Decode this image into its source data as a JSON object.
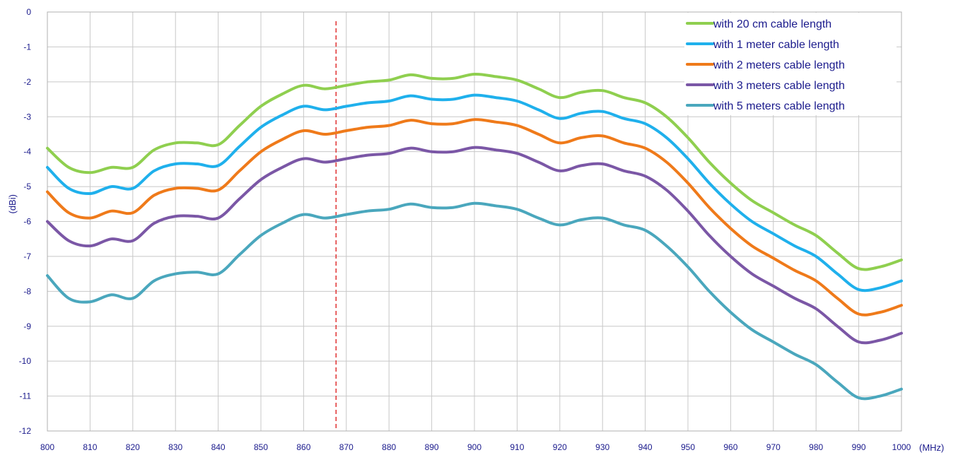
{
  "chart_data": {
    "type": "line",
    "x_unit_label": "(MHz)",
    "y_unit_label": "(dBi)",
    "xlim": [
      800,
      1000
    ],
    "ylim": [
      -12,
      0
    ],
    "x_ticks": [
      "800",
      "810",
      "820",
      "830",
      "840",
      "850",
      "860",
      "870",
      "880",
      "890",
      "900",
      "910",
      "920",
      "930",
      "940",
      "950",
      "960",
      "970",
      "980",
      "990",
      "1000"
    ],
    "y_ticks": [
      "0",
      "-1",
      "-2",
      "-3",
      "-4",
      "-5",
      "-6",
      "-7",
      "-8",
      "-9",
      "-10",
      "-11",
      "-12"
    ],
    "grid": true,
    "legend_position": "top-right",
    "marker_line": {
      "x": 867.6,
      "color": "#e03030",
      "style": "dashed"
    },
    "series": [
      {
        "name": "with 20 cm cable length",
        "color": "#8fcf4f",
        "x": [
          800,
          805,
          810,
          815,
          820,
          825,
          830,
          835,
          840,
          845,
          850,
          855,
          860,
          865,
          870,
          875,
          880,
          885,
          890,
          895,
          900,
          905,
          910,
          915,
          920,
          925,
          930,
          935,
          940,
          945,
          950,
          955,
          960,
          965,
          970,
          975,
          980,
          985,
          990,
          995,
          1000
        ],
        "y": [
          -3.9,
          -4.45,
          -4.6,
          -4.45,
          -4.45,
          -3.95,
          -3.75,
          -3.75,
          -3.8,
          -3.25,
          -2.7,
          -2.35,
          -2.1,
          -2.2,
          -2.1,
          -2.0,
          -1.95,
          -1.8,
          -1.9,
          -1.9,
          -1.78,
          -1.85,
          -1.95,
          -2.2,
          -2.45,
          -2.3,
          -2.25,
          -2.45,
          -2.6,
          -3.0,
          -3.6,
          -4.3,
          -4.9,
          -5.4,
          -5.75,
          -6.1,
          -6.4,
          -6.9,
          -7.35,
          -7.3,
          -7.1
        ]
      },
      {
        "name": "with 1 meter cable length",
        "color": "#1fb0ec",
        "x": [
          800,
          805,
          810,
          815,
          820,
          825,
          830,
          835,
          840,
          845,
          850,
          855,
          860,
          865,
          870,
          875,
          880,
          885,
          890,
          895,
          900,
          905,
          910,
          915,
          920,
          925,
          930,
          935,
          940,
          945,
          950,
          955,
          960,
          965,
          970,
          975,
          980,
          985,
          990,
          995,
          1000
        ],
        "y": [
          -4.45,
          -5.05,
          -5.2,
          -5.0,
          -5.05,
          -4.55,
          -4.35,
          -4.35,
          -4.4,
          -3.85,
          -3.3,
          -2.95,
          -2.7,
          -2.8,
          -2.7,
          -2.6,
          -2.55,
          -2.4,
          -2.5,
          -2.5,
          -2.38,
          -2.45,
          -2.55,
          -2.8,
          -3.05,
          -2.9,
          -2.85,
          -3.05,
          -3.2,
          -3.6,
          -4.2,
          -4.9,
          -5.5,
          -6.0,
          -6.35,
          -6.7,
          -7.0,
          -7.5,
          -7.95,
          -7.9,
          -7.7
        ]
      },
      {
        "name": "with 2 meters cable length",
        "color": "#ef7a1a",
        "x": [
          800,
          805,
          810,
          815,
          820,
          825,
          830,
          835,
          840,
          845,
          850,
          855,
          860,
          865,
          870,
          875,
          880,
          885,
          890,
          895,
          900,
          905,
          910,
          915,
          920,
          925,
          930,
          935,
          940,
          945,
          950,
          955,
          960,
          965,
          970,
          975,
          980,
          985,
          990,
          995,
          1000
        ],
        "y": [
          -5.15,
          -5.75,
          -5.9,
          -5.7,
          -5.75,
          -5.25,
          -5.05,
          -5.05,
          -5.1,
          -4.55,
          -4.0,
          -3.65,
          -3.4,
          -3.5,
          -3.4,
          -3.3,
          -3.25,
          -3.1,
          -3.2,
          -3.2,
          -3.08,
          -3.15,
          -3.25,
          -3.5,
          -3.75,
          -3.6,
          -3.55,
          -3.75,
          -3.9,
          -4.3,
          -4.9,
          -5.6,
          -6.2,
          -6.7,
          -7.05,
          -7.4,
          -7.7,
          -8.2,
          -8.65,
          -8.6,
          -8.4
        ]
      },
      {
        "name": "with 3 meters cable length",
        "color": "#7b57a6",
        "x": [
          800,
          805,
          810,
          815,
          820,
          825,
          830,
          835,
          840,
          845,
          850,
          855,
          860,
          865,
          870,
          875,
          880,
          885,
          890,
          895,
          900,
          905,
          910,
          915,
          920,
          925,
          930,
          935,
          940,
          945,
          950,
          955,
          960,
          965,
          970,
          975,
          980,
          985,
          990,
          995,
          1000
        ],
        "y": [
          -6.0,
          -6.55,
          -6.7,
          -6.5,
          -6.55,
          -6.05,
          -5.85,
          -5.85,
          -5.9,
          -5.35,
          -4.8,
          -4.45,
          -4.2,
          -4.3,
          -4.2,
          -4.1,
          -4.05,
          -3.9,
          -4.0,
          -4.0,
          -3.88,
          -3.95,
          -4.05,
          -4.3,
          -4.55,
          -4.4,
          -4.35,
          -4.55,
          -4.7,
          -5.1,
          -5.7,
          -6.4,
          -7.0,
          -7.5,
          -7.85,
          -8.2,
          -8.5,
          -9.0,
          -9.45,
          -9.4,
          -9.2
        ]
      },
      {
        "name": "with 5 meters cable length",
        "color": "#4aa7bd",
        "x": [
          800,
          805,
          810,
          815,
          820,
          825,
          830,
          835,
          840,
          845,
          850,
          855,
          860,
          865,
          870,
          875,
          880,
          885,
          890,
          895,
          900,
          905,
          910,
          915,
          920,
          925,
          930,
          935,
          940,
          945,
          950,
          955,
          960,
          965,
          970,
          975,
          980,
          985,
          990,
          995,
          1000
        ],
        "y": [
          -7.55,
          -8.2,
          -8.3,
          -8.1,
          -8.2,
          -7.7,
          -7.5,
          -7.45,
          -7.5,
          -6.95,
          -6.4,
          -6.05,
          -5.8,
          -5.9,
          -5.8,
          -5.7,
          -5.65,
          -5.5,
          -5.6,
          -5.6,
          -5.48,
          -5.55,
          -5.65,
          -5.9,
          -6.1,
          -5.95,
          -5.9,
          -6.1,
          -6.25,
          -6.7,
          -7.3,
          -8.0,
          -8.6,
          -9.1,
          -9.45,
          -9.8,
          -10.1,
          -10.6,
          -11.05,
          -11.0,
          -10.8
        ]
      }
    ]
  }
}
